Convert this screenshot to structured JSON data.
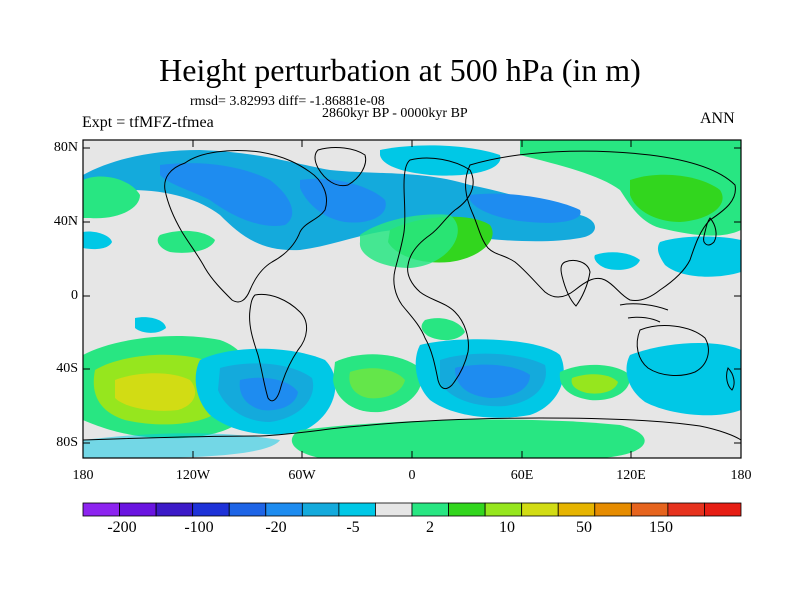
{
  "title": "Height perturbation at 500 hPa (in m)",
  "stats_line": "rmsd= 3.82993 diff= -1.86881e-08",
  "period": "2860kyr BP - 0000kyr BP",
  "experiment": "Expt = tfMFZ-tfmea",
  "season": "ANN",
  "lat_ticks": [
    "80N",
    "40N",
    "0",
    "40S",
    "80S"
  ],
  "lon_ticks": [
    "180",
    "120W",
    "60W",
    "0",
    "60E",
    "120E",
    "180"
  ],
  "colorbar": {
    "colors": [
      "#8d24f0",
      "#6a14e0",
      "#3c1ac8",
      "#1e32d8",
      "#1e64e6",
      "#1e8cf0",
      "#14aadc",
      "#00c8e6",
      "#e6e6e6",
      "#28e682",
      "#32d61e",
      "#96e61e",
      "#d2dc14",
      "#e6b400",
      "#e68c00",
      "#e6641e",
      "#e6321e",
      "#e61e14"
    ],
    "labels": [
      "-200",
      "-100",
      "-20",
      "-5",
      "2",
      "10",
      "50",
      "150"
    ]
  },
  "colors": {
    "background_map": "#e6e6e6",
    "coastline": "#000000"
  }
}
